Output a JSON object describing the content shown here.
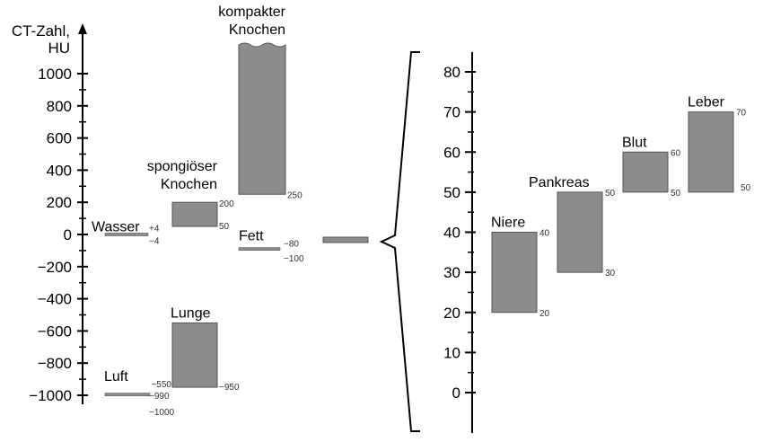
{
  "chart_data": [
    {
      "type": "bar",
      "ylabel": "CT-Zahl, HU",
      "ylim": [
        -1000,
        1000
      ],
      "yticks": [
        "1000",
        "800",
        "600",
        "400",
        "200",
        "0",
        "−200",
        "−400",
        "−600",
        "−800",
        "−1000"
      ],
      "ytick_values": [
        1000,
        800,
        600,
        400,
        200,
        0,
        -200,
        -400,
        -600,
        -800,
        -1000
      ],
      "ranges": [
        {
          "key": "luft",
          "label": "Luft",
          "low": -1000,
          "high": -990,
          "low_label": "−1000",
          "high_label": "−990",
          "kind": "line"
        },
        {
          "key": "wasser",
          "label": "Wasser",
          "low": -4,
          "high": 4,
          "low_label": "−4",
          "high_label": "+4",
          "kind": "line"
        },
        {
          "key": "spongioeser-knochen",
          "label_lines": [
            "spongiöser",
            "Knochen"
          ],
          "low": 50,
          "high": 200,
          "low_label": "50",
          "high_label": "200",
          "kind": "bar"
        },
        {
          "key": "lunge",
          "label": "Lunge",
          "low": -950,
          "high": -550,
          "low_label": "−950",
          "high_label": "−550",
          "kind": "bar"
        },
        {
          "key": "kompakter-knochen",
          "label_lines": [
            "kompakter",
            "Knochen"
          ],
          "low": 250,
          "high": 1000,
          "low_label": "250",
          "kind": "bar",
          "open_top": true
        },
        {
          "key": "fett",
          "label": "Fett",
          "low": -100,
          "high": -80,
          "low_label": "−100",
          "high_label": "−80",
          "kind": "line"
        },
        {
          "key": "weichteile",
          "low": 20,
          "high": 70,
          "kind": "bar",
          "zoomed": true
        }
      ]
    },
    {
      "type": "bar",
      "ylim": [
        0,
        80
      ],
      "yticks": [
        "80",
        "70",
        "60",
        "50",
        "40",
        "30",
        "20",
        "10",
        "0"
      ],
      "ytick_values": [
        80,
        70,
        60,
        50,
        40,
        30,
        20,
        10,
        0
      ],
      "ranges": [
        {
          "key": "niere",
          "label": "Niere",
          "low": 20,
          "high": 40,
          "low_label": "20",
          "high_label": "40"
        },
        {
          "key": "pankreas",
          "label": "Pankreas",
          "low": 30,
          "high": 50,
          "low_label": "30",
          "high_label": "50"
        },
        {
          "key": "blut",
          "label": "Blut",
          "low": 50,
          "high": 60,
          "low_label": "50",
          "high_label": "60"
        },
        {
          "key": "leber",
          "label": "Leber",
          "low": 50,
          "high": 70,
          "low_label": "50",
          "high_label": "70"
        }
      ]
    }
  ],
  "colors": {
    "bar_fill": "#8c8c8c",
    "bar_stroke": "#555555",
    "axis": "#000000"
  }
}
